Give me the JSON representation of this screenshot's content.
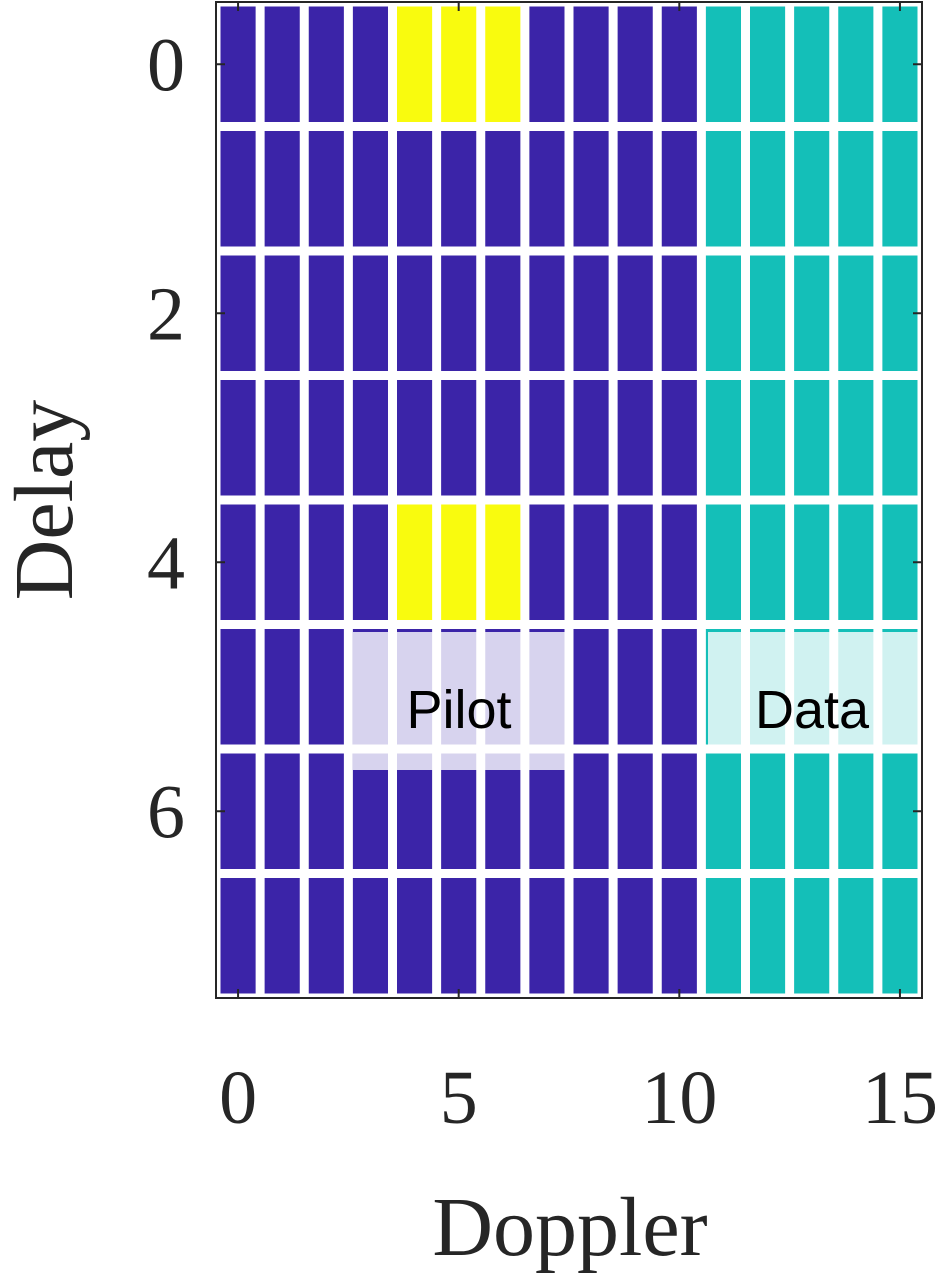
{
  "chart_data": {
    "type": "heatmap",
    "xlabel": "Doppler",
    "ylabel": "Delay",
    "xlim": [
      -0.5,
      15.5
    ],
    "ylim": [
      -0.5,
      7.5
    ],
    "xticks": [
      0,
      5,
      10,
      15
    ],
    "yticks": [
      0,
      2,
      4,
      6
    ],
    "y_reversed": true,
    "colormap": [
      [
        0,
        "#3b24a8"
      ],
      [
        0.5,
        "#14bfb8"
      ],
      [
        1,
        "#f9fb0e"
      ]
    ],
    "z": [
      [
        0,
        0,
        0,
        0,
        1,
        1,
        1,
        0,
        0,
        0,
        0,
        0.5,
        0.5,
        0.5,
        0.5,
        0.5
      ],
      [
        0,
        0,
        0,
        0,
        0,
        0,
        0,
        0,
        0,
        0,
        0,
        0.5,
        0.5,
        0.5,
        0.5,
        0.5
      ],
      [
        0,
        0,
        0,
        0,
        0,
        0,
        0,
        0,
        0,
        0,
        0,
        0.5,
        0.5,
        0.5,
        0.5,
        0.5
      ],
      [
        0,
        0,
        0,
        0,
        0,
        0,
        0,
        0,
        0,
        0,
        0,
        0.5,
        0.5,
        0.5,
        0.5,
        0.5
      ],
      [
        0,
        0,
        0,
        0,
        1,
        1,
        1,
        0,
        0,
        0,
        0,
        0.5,
        0.5,
        0.5,
        0.5,
        0.5
      ],
      [
        0,
        0,
        0,
        0,
        0,
        0,
        0,
        0,
        0,
        0,
        0,
        0.5,
        0.5,
        0.5,
        0.5,
        0.5
      ],
      [
        0,
        0,
        0,
        0,
        0,
        0,
        0,
        0,
        0,
        0,
        0,
        0.5,
        0.5,
        0.5,
        0.5,
        0.5
      ],
      [
        0,
        0,
        0,
        0,
        0,
        0,
        0,
        0,
        0,
        0,
        0,
        0.5,
        0.5,
        0.5,
        0.5,
        0.5
      ]
    ],
    "annotations": [
      "Pilot",
      "Data"
    ]
  }
}
